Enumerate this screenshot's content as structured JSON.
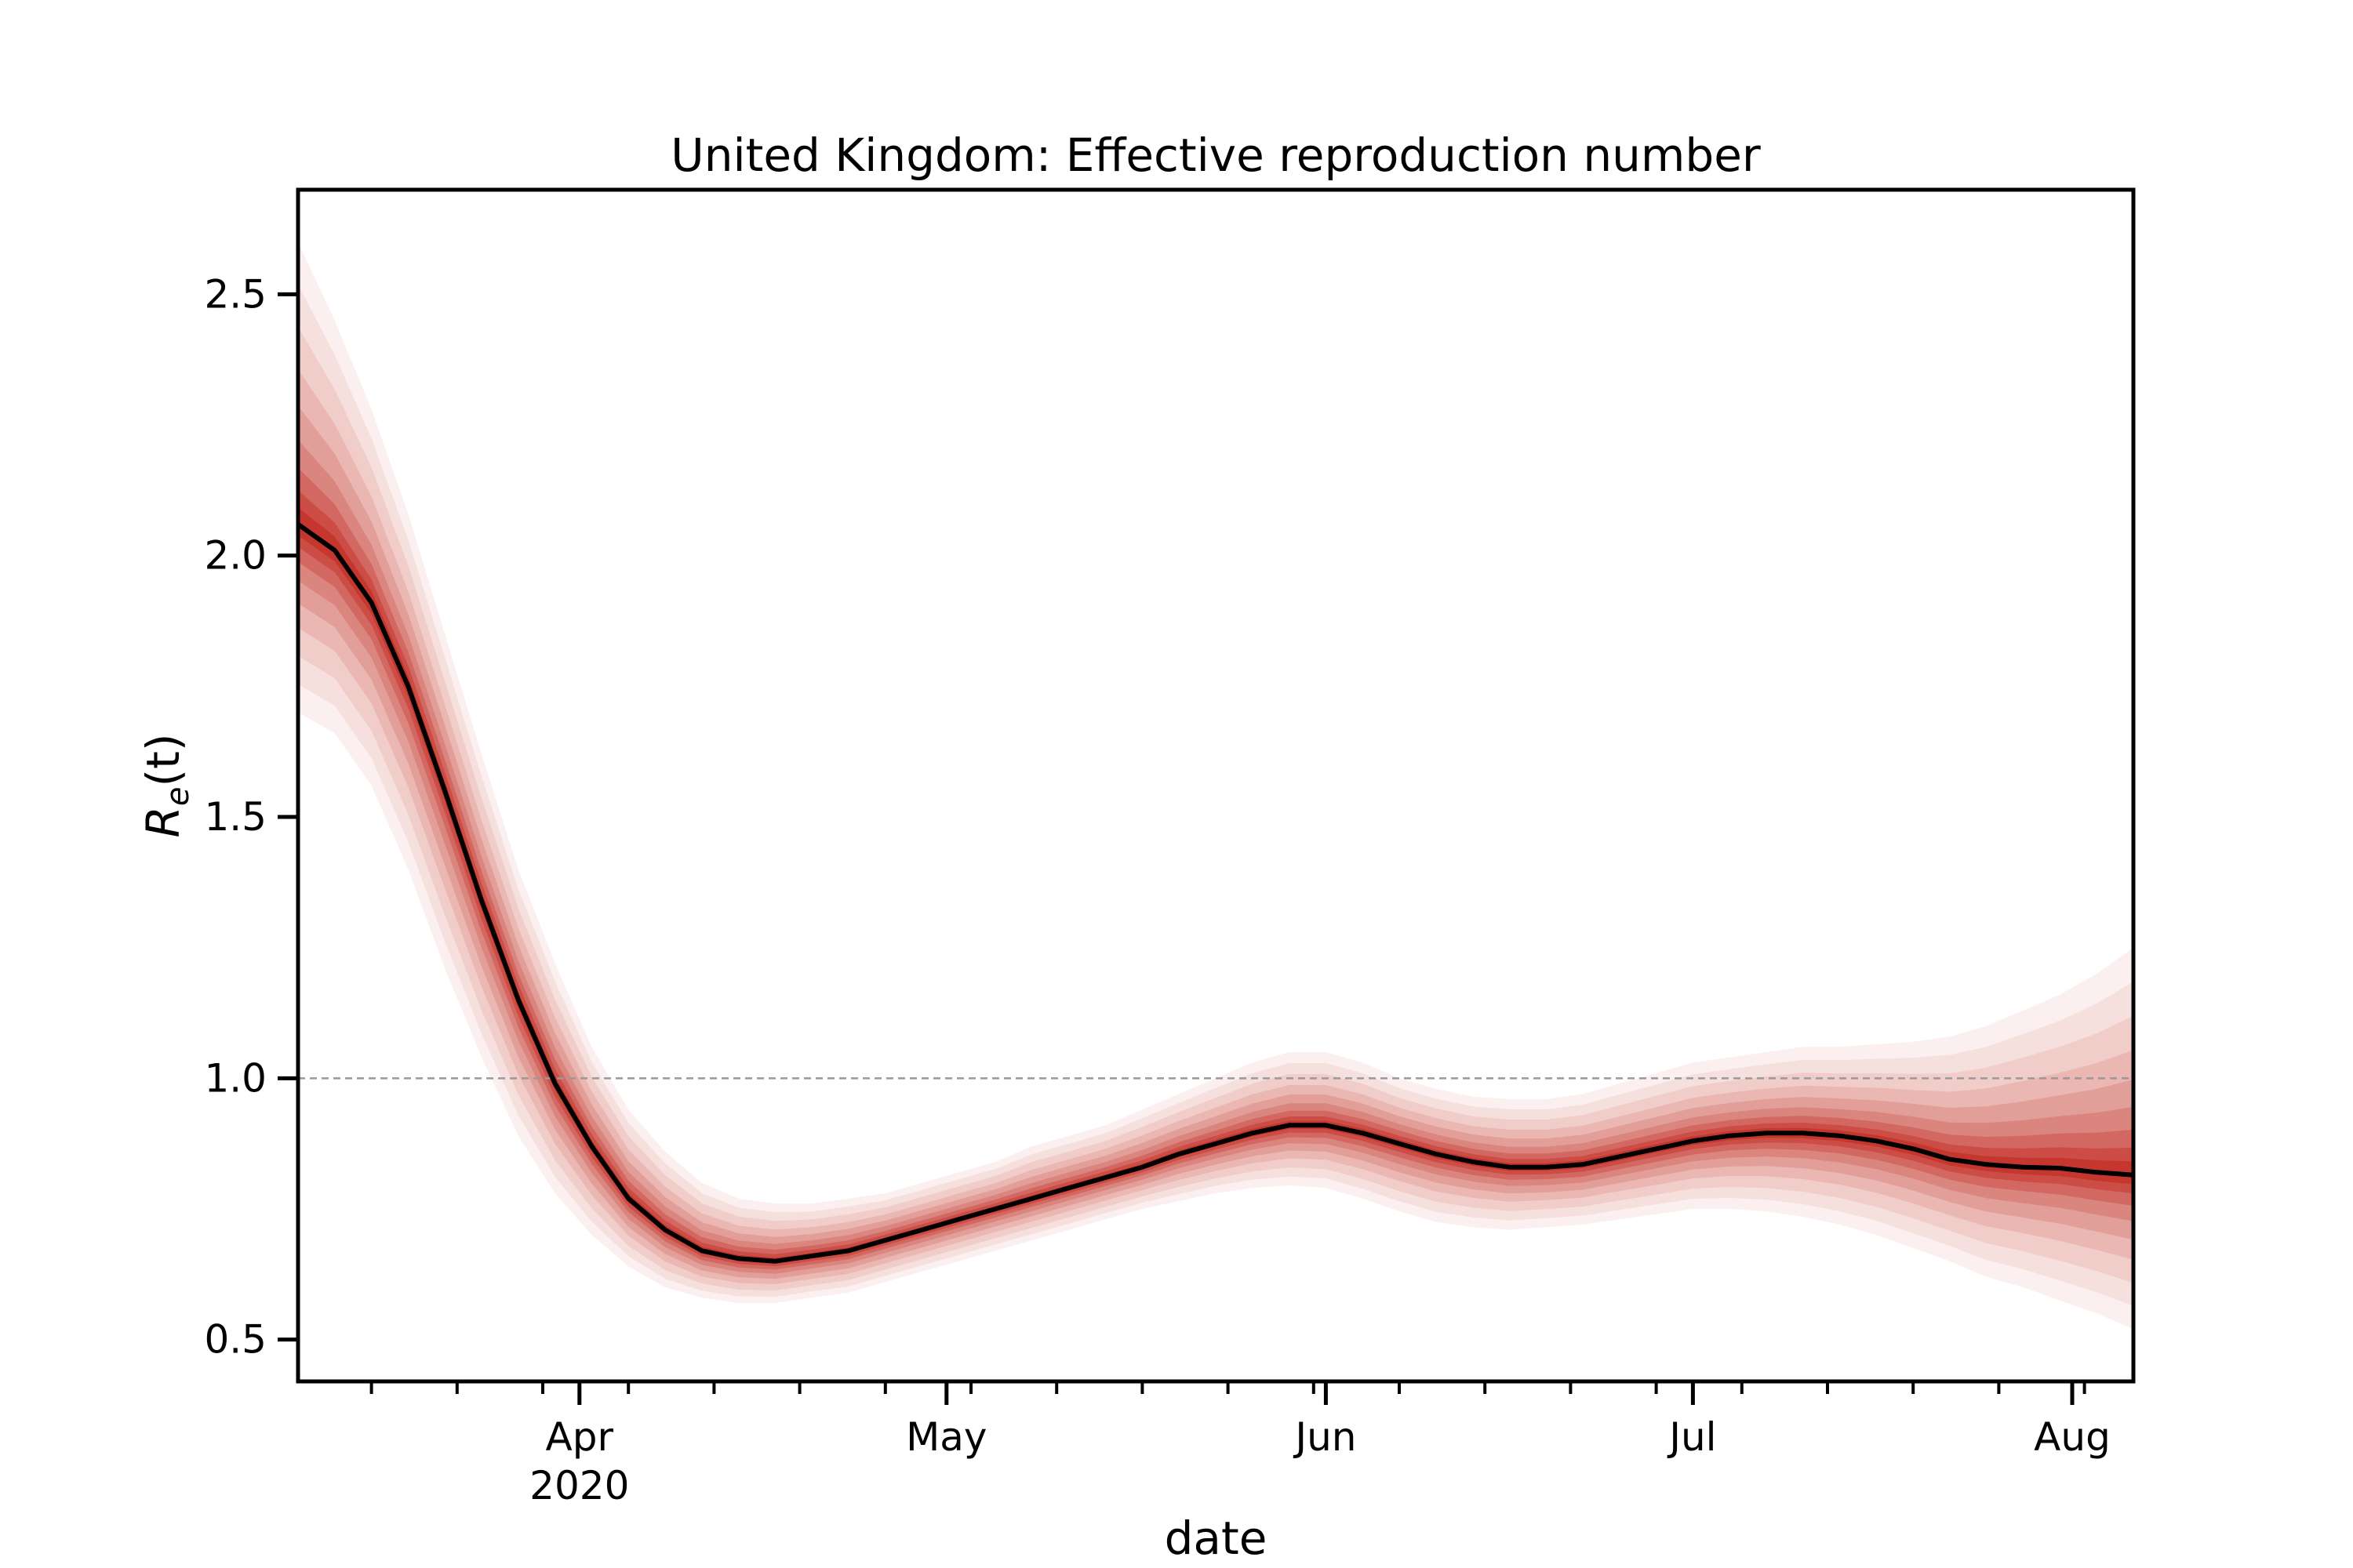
{
  "chart_data": {
    "type": "line",
    "title": "United Kingdom: Effective reproduction number",
    "xlabel": "date",
    "ylabel_main": "R",
    "ylabel_sub": "e",
    "ylabel_suffix": "(t)",
    "x_start": "2020-03-09",
    "x_end": "2020-08-06",
    "ylim": [
      0.42,
      2.7
    ],
    "y_ticks": [
      {
        "value": 0.5,
        "label": "0.5"
      },
      {
        "value": 1.0,
        "label": "1.0"
      },
      {
        "value": 1.5,
        "label": "1.5"
      },
      {
        "value": 2.0,
        "label": "2.0"
      },
      {
        "value": 2.5,
        "label": "2.5"
      }
    ],
    "x_ticks": [
      {
        "date": "2020-04-01",
        "label": "Apr",
        "label2": "2020"
      },
      {
        "date": "2020-05-01",
        "label": "May",
        "label2": ""
      },
      {
        "date": "2020-06-01",
        "label": "Jun",
        "label2": ""
      },
      {
        "date": "2020-07-01",
        "label": "Jul",
        "label2": ""
      },
      {
        "date": "2020-08-01",
        "label": "Aug",
        "label2": ""
      }
    ],
    "x_minor_ticks": [
      "2020-03-15",
      "2020-03-22",
      "2020-03-29",
      "2020-04-05",
      "2020-04-12",
      "2020-04-19",
      "2020-04-26",
      "2020-05-03",
      "2020-05-10",
      "2020-05-17",
      "2020-05-24",
      "2020-05-31",
      "2020-06-07",
      "2020-06-14",
      "2020-06-21",
      "2020-06-28",
      "2020-07-05",
      "2020-07-12",
      "2020-07-19",
      "2020-07-26",
      "2020-08-02"
    ],
    "reference_line": {
      "y": 1.0,
      "style": "dashed",
      "color": "#999999"
    },
    "series": [
      {
        "line_color": "#000000",
        "band_color": "#c0281f",
        "x": [
          "2020-03-09",
          "2020-03-12",
          "2020-03-15",
          "2020-03-18",
          "2020-03-21",
          "2020-03-24",
          "2020-03-27",
          "2020-03-30",
          "2020-04-02",
          "2020-04-05",
          "2020-04-08",
          "2020-04-11",
          "2020-04-14",
          "2020-04-17",
          "2020-04-20",
          "2020-04-23",
          "2020-04-26",
          "2020-04-29",
          "2020-05-02",
          "2020-05-05",
          "2020-05-08",
          "2020-05-11",
          "2020-05-14",
          "2020-05-17",
          "2020-05-20",
          "2020-05-23",
          "2020-05-26",
          "2020-05-29",
          "2020-06-01",
          "2020-06-04",
          "2020-06-07",
          "2020-06-10",
          "2020-06-13",
          "2020-06-16",
          "2020-06-19",
          "2020-06-22",
          "2020-06-25",
          "2020-06-28",
          "2020-07-01",
          "2020-07-04",
          "2020-07-07",
          "2020-07-10",
          "2020-07-13",
          "2020-07-16",
          "2020-07-19",
          "2020-07-22",
          "2020-07-25",
          "2020-07-28",
          "2020-07-31",
          "2020-08-03",
          "2020-08-06"
        ],
        "median": [
          2.06,
          2.01,
          1.91,
          1.75,
          1.55,
          1.34,
          1.15,
          0.99,
          0.87,
          0.77,
          0.71,
          0.67,
          0.655,
          0.65,
          0.66,
          0.67,
          0.69,
          0.71,
          0.73,
          0.75,
          0.77,
          0.79,
          0.81,
          0.83,
          0.855,
          0.875,
          0.895,
          0.91,
          0.91,
          0.895,
          0.875,
          0.855,
          0.84,
          0.83,
          0.83,
          0.835,
          0.85,
          0.865,
          0.88,
          0.89,
          0.895,
          0.895,
          0.89,
          0.88,
          0.865,
          0.845,
          0.835,
          0.83,
          0.828,
          0.82,
          0.815
        ],
        "lower": [
          1.7,
          1.66,
          1.56,
          1.4,
          1.21,
          1.04,
          0.89,
          0.78,
          0.7,
          0.64,
          0.6,
          0.58,
          0.57,
          0.57,
          0.58,
          0.59,
          0.61,
          0.63,
          0.65,
          0.67,
          0.69,
          0.71,
          0.73,
          0.75,
          0.765,
          0.78,
          0.79,
          0.795,
          0.79,
          0.77,
          0.745,
          0.725,
          0.715,
          0.71,
          0.715,
          0.72,
          0.73,
          0.74,
          0.75,
          0.75,
          0.745,
          0.735,
          0.72,
          0.7,
          0.675,
          0.65,
          0.62,
          0.6,
          0.575,
          0.55,
          0.52
        ],
        "upper": [
          2.6,
          2.45,
          2.28,
          2.08,
          1.85,
          1.62,
          1.4,
          1.22,
          1.06,
          0.94,
          0.86,
          0.8,
          0.77,
          0.76,
          0.76,
          0.77,
          0.78,
          0.8,
          0.82,
          0.84,
          0.87,
          0.89,
          0.91,
          0.94,
          0.97,
          1.0,
          1.03,
          1.05,
          1.05,
          1.03,
          1.0,
          0.98,
          0.965,
          0.96,
          0.96,
          0.97,
          0.99,
          1.01,
          1.03,
          1.04,
          1.05,
          1.06,
          1.06,
          1.065,
          1.07,
          1.08,
          1.1,
          1.13,
          1.16,
          1.2,
          1.25
        ]
      }
    ]
  }
}
